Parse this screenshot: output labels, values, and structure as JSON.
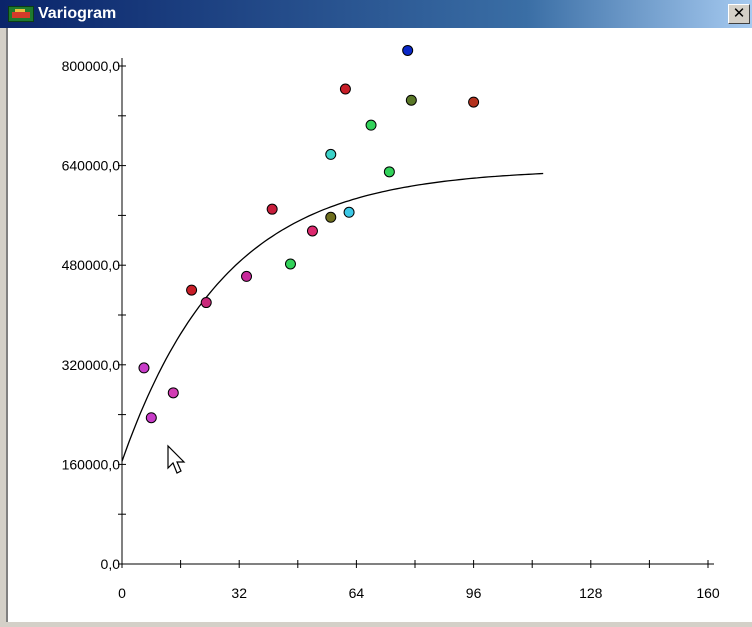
{
  "window": {
    "title": "Variogram",
    "close_symbol": "✕"
  },
  "chart_data": {
    "type": "scatter",
    "title": "",
    "xlabel": "",
    "ylabel": "",
    "xlim": [
      0,
      160
    ],
    "ylim": [
      0,
      800000
    ],
    "x_tick_labels": [
      "0",
      "32",
      "64",
      "96",
      "128",
      "160"
    ],
    "x_ticks": [
      0,
      32,
      64,
      96,
      128,
      160
    ],
    "y_tick_labels": [
      "0,0",
      "160000,0",
      "320000,0",
      "480000,0",
      "640000,0",
      "800000,0"
    ],
    "y_ticks": [
      0,
      160000,
      320000,
      480000,
      640000,
      800000
    ],
    "grid": false,
    "points": [
      {
        "x": 6,
        "y": 315000,
        "color": "#c83cc8"
      },
      {
        "x": 8,
        "y": 235000,
        "color": "#c83cc8"
      },
      {
        "x": 14,
        "y": 275000,
        "color": "#d23cb4"
      },
      {
        "x": 19,
        "y": 440000,
        "color": "#c81e28"
      },
      {
        "x": 23,
        "y": 420000,
        "color": "#c8287a"
      },
      {
        "x": 34,
        "y": 462000,
        "color": "#c8289a"
      },
      {
        "x": 41,
        "y": 570000,
        "color": "#c81e3c"
      },
      {
        "x": 46,
        "y": 482000,
        "color": "#32d25a"
      },
      {
        "x": 52,
        "y": 535000,
        "color": "#dc286e"
      },
      {
        "x": 57,
        "y": 658000,
        "color": "#3cd2c8"
      },
      {
        "x": 57,
        "y": 557000,
        "color": "#6e6e1e"
      },
      {
        "x": 61,
        "y": 763000,
        "color": "#c81e28"
      },
      {
        "x": 62,
        "y": 565000,
        "color": "#3cc8e6"
      },
      {
        "x": 68,
        "y": 705000,
        "color": "#32d25a"
      },
      {
        "x": 73,
        "y": 630000,
        "color": "#32d25a"
      },
      {
        "x": 78,
        "y": 825000,
        "color": "#0a28c8"
      },
      {
        "x": 79,
        "y": 745000,
        "color": "#5a7828"
      },
      {
        "x": 96,
        "y": 742000,
        "color": "#b4321e"
      }
    ],
    "model_curve": {
      "type": "exponential",
      "nugget": 165000,
      "sill": 635000,
      "range": 28,
      "x_max": 115,
      "color": "#000000"
    }
  }
}
